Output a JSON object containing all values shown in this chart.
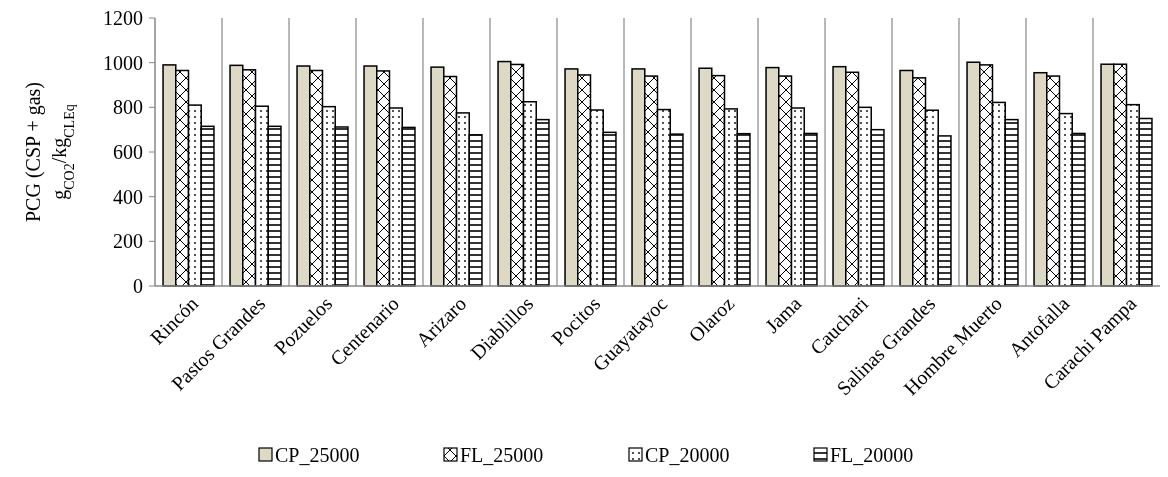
{
  "chart_data": {
    "type": "bar",
    "ylabel": "PCG (CSP + gas)\ng$_{CO2}$/kg$_{CLEq}$",
    "categories": [
      "Rincón",
      "Pastos Grandes",
      "Pozuelos",
      "Centenario",
      "Arizaro",
      "Diablillos",
      "Pocitos",
      "Guayatayoc",
      "Olaroz",
      "Jama",
      "Cauchari",
      "Salinas Grandes",
      "Hombre Muerto",
      "Antofalla",
      "Carachi Pampa"
    ],
    "series": [
      {
        "name": "CP_25000",
        "color": "#ddd9c4",
        "values": [
          990,
          988,
          985,
          985,
          980,
          1005,
          972,
          972,
          975,
          978,
          982,
          965,
          1002,
          955,
          993
        ]
      },
      {
        "name": "FL_25000",
        "color": "#000000",
        "values": [
          965,
          968,
          965,
          963,
          938,
          992,
          945,
          940,
          942,
          940,
          957,
          932,
          990,
          940,
          993
        ]
      },
      {
        "name": "CP_20000",
        "color": "#000000",
        "values": [
          810,
          805,
          803,
          797,
          775,
          825,
          788,
          790,
          793,
          797,
          800,
          787,
          822,
          772,
          812
        ]
      },
      {
        "name": "FL_20000",
        "color": "#000000",
        "values": [
          715,
          715,
          712,
          710,
          677,
          745,
          688,
          680,
          682,
          683,
          700,
          672,
          745,
          683,
          750
        ]
      }
    ],
    "ylim": [
      0,
      1200
    ],
    "yticks": [
      0,
      200,
      400,
      600,
      800,
      1000,
      1200
    ],
    "grid": "x",
    "legend": "bottom"
  }
}
